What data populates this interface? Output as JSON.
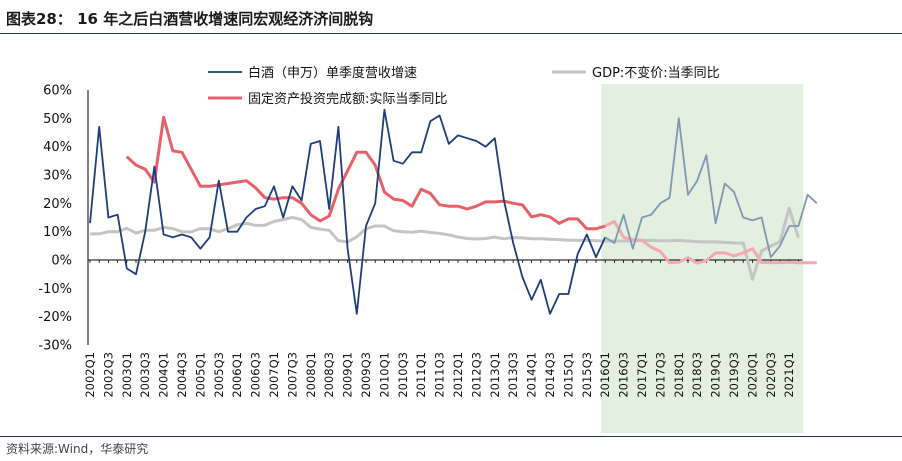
{
  "title": "图表28： 16 年之后白酒营收增速同宏观经济济间脱钩",
  "source": "资料来源:Wind，华泰研究",
  "chart_data": {
    "type": "line",
    "yticks": [
      "60%",
      "50%",
      "40%",
      "30%",
      "20%",
      "10%",
      "0%",
      "-10%",
      "-20%",
      "-30%"
    ],
    "ylim": [
      -30,
      60
    ],
    "x_tick_labels": [
      "2002Q1",
      "2002Q3",
      "2003Q1",
      "2003Q3",
      "2004Q1",
      "2004Q3",
      "2005Q1",
      "2005Q3",
      "2006Q1",
      "2006Q3",
      "2007Q1",
      "2007Q3",
      "2008Q1",
      "2008Q3",
      "2009Q1",
      "2009Q3",
      "2010Q1",
      "2010Q3",
      "2011Q1",
      "2011Q3",
      "2012Q1",
      "2012Q3",
      "2013Q1",
      "2013Q3",
      "2014Q1",
      "2014Q3",
      "2015Q1",
      "2015Q3",
      "2016Q1",
      "2016Q3",
      "2017Q1",
      "2017Q3",
      "2018Q1",
      "2018Q3",
      "2019Q1",
      "2019Q3",
      "2020Q1",
      "2020Q3",
      "2021Q1"
    ],
    "x_quarter_range": [
      "2002Q1",
      "2021Q2"
    ],
    "shaded_region": {
      "start": "2016Q1",
      "end": "2021Q2",
      "color": "#e3efdf"
    },
    "series": [
      {
        "name": "白酒（申万）单季度营收增速",
        "color": "#1f3d7a",
        "faded_color": "#7f97b3",
        "start": "2002Q1",
        "values": [
          13,
          47,
          15,
          16,
          -3,
          -5,
          10,
          33,
          9,
          8,
          9,
          8,
          4,
          8,
          28,
          10,
          10,
          15,
          18,
          19,
          26,
          15,
          26,
          21,
          41,
          42,
          18,
          47,
          4,
          -19,
          12,
          20,
          53,
          35,
          34,
          38,
          38,
          49,
          51,
          41,
          44,
          43,
          42,
          40,
          43,
          21,
          6,
          -6,
          -14,
          -7,
          -19,
          -12,
          -12,
          2,
          9,
          1,
          8,
          6,
          16,
          4,
          15,
          16,
          20,
          22,
          50,
          23,
          28,
          37,
          13,
          27,
          24,
          15,
          14,
          15,
          1,
          5,
          12,
          12,
          23,
          20
        ]
      },
      {
        "name": "GDP:不变价:当季同比",
        "color": "#c4c4c4",
        "start": "2002Q1",
        "values": [
          9.2,
          9.2,
          10,
          10,
          11.2,
          9.5,
          10.5,
          10.5,
          11.5,
          11.1,
          10,
          9.9,
          11.1,
          11,
          10,
          11,
          12.5,
          12.9,
          12.2,
          12.3,
          13.6,
          14.3,
          15,
          14.3,
          11.5,
          10.9,
          10.5,
          6.8,
          6.4,
          8.2,
          11,
          12,
          12,
          10.3,
          10,
          9.8,
          10.2,
          9.7,
          9.4,
          8.9,
          8.1,
          7.6,
          7.4,
          7.6,
          8.1,
          7.5,
          7.9,
          7.8,
          7.5,
          7.5,
          7.3,
          7.2,
          7,
          7,
          6.9,
          6.8,
          6.7,
          6.7,
          6.7,
          6.8,
          6.9,
          6.9,
          6.8,
          6.8,
          6.9,
          6.7,
          6.5,
          6.4,
          6.4,
          6.2,
          6,
          6,
          -6.8,
          3.2,
          4.9,
          6.5,
          18.3,
          7.9
        ]
      },
      {
        "name": "固定资产投资完成额:实际当季同比",
        "color": "#e8606a",
        "faded_color": "#f4a9ae",
        "start": "2003Q1",
        "values": [
          36.5,
          33.5,
          32,
          27.5,
          50.4,
          38.5,
          38,
          32,
          26,
          26,
          26.5,
          27,
          27.5,
          28,
          25.5,
          22,
          21.5,
          22,
          22,
          20,
          16,
          13.8,
          15.5,
          25,
          31.5,
          38,
          38,
          33.5,
          24,
          21.5,
          21,
          19,
          25,
          23.5,
          19.5,
          19,
          19,
          18,
          19,
          20.5,
          20.5,
          20.8,
          20,
          19.5,
          15.2,
          16,
          15.2,
          12.9,
          14.5,
          14.5,
          11,
          11,
          12,
          13.6,
          8,
          7.2,
          7,
          4.5,
          3,
          -1,
          -0.8,
          0.8,
          -1.1,
          -0.2,
          2.5,
          2.5,
          1.5,
          2.5,
          4,
          -0.8,
          -0.9,
          -0.9,
          -0.8,
          -1,
          -1,
          -0.9
        ]
      }
    ]
  }
}
